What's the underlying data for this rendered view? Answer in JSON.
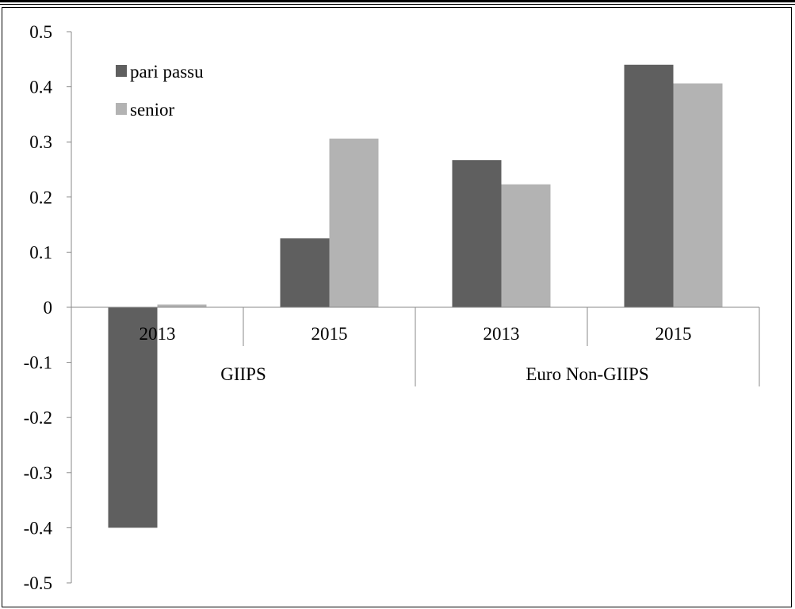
{
  "chart_data": {
    "type": "bar",
    "groups": [
      {
        "label": "GIIPS",
        "categories": [
          "2013",
          "2015"
        ]
      },
      {
        "label": "Euro Non-GIIPS",
        "categories": [
          "2013",
          "2015"
        ]
      }
    ],
    "categories": [
      "2013",
      "2015",
      "2013",
      "2015"
    ],
    "series": [
      {
        "name": "pari passu",
        "color": "#5f5f5f",
        "values": [
          -0.4,
          0.125,
          0.267,
          0.44
        ]
      },
      {
        "name": "senior",
        "color": "#b3b3b3",
        "values": [
          0.005,
          0.306,
          0.223,
          0.406
        ]
      }
    ],
    "yticks": [
      "0.5",
      "0.4",
      "0.3",
      "0.2",
      "0.1",
      "0",
      "-0.1",
      "-0.2",
      "-0.3",
      "-0.4",
      "-0.5"
    ],
    "ylim": [
      -0.5,
      0.5
    ],
    "legend_position": "top-left",
    "grid": false
  }
}
